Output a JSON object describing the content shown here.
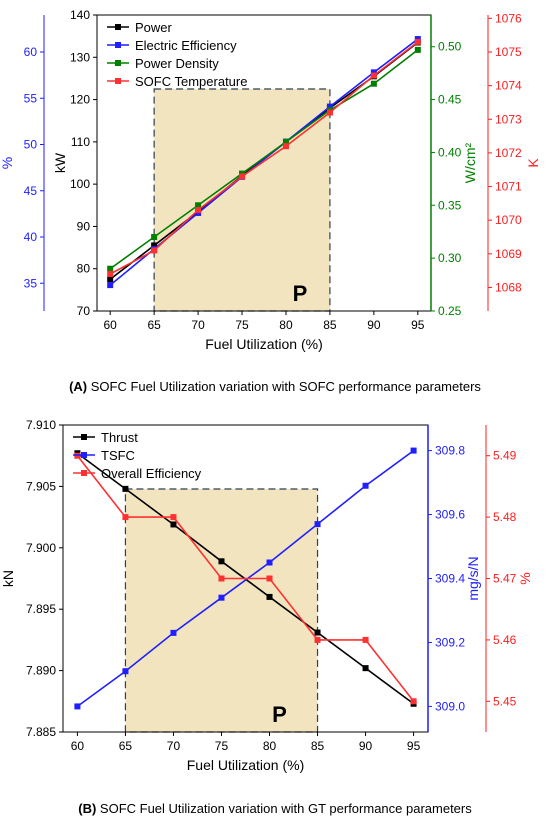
{
  "panels": [
    {
      "id": "A",
      "caption_label": "(A)",
      "caption_text": "SOFC Fuel Utilization variation with SOFC performance parameters",
      "chart_data": {
        "type": "line",
        "x": [
          60,
          65,
          70,
          75,
          80,
          85,
          90,
          95
        ],
        "xlabel": "Fuel Utilization (%)",
        "xlim": [
          58.5,
          96.5
        ],
        "xticks": [
          60,
          65,
          70,
          75,
          80,
          85,
          90,
          95
        ],
        "highlight": {
          "x0": 65,
          "x1": 85,
          "label": "P",
          "fill": "#f3e4c0"
        },
        "axes": [
          {
            "id": "kw",
            "side": "left",
            "offset": 0,
            "label": "kW",
            "color": "#000000",
            "lim": [
              70,
              140
            ],
            "ticks": [
              70,
              80,
              90,
              100,
              110,
              120,
              130,
              140
            ]
          },
          {
            "id": "pct",
            "side": "left",
            "offset": 1,
            "label": "%",
            "color": "#1f1fff",
            "lim": [
              32,
              64
            ],
            "ticks": [
              35,
              40,
              45,
              50,
              55,
              60
            ]
          },
          {
            "id": "wcm",
            "side": "right",
            "offset": 0,
            "label": "W/cm²",
            "color": "#008000",
            "lim": [
              0.25,
              0.53
            ],
            "ticks": [
              0.25,
              0.3,
              0.35,
              0.4,
              0.45,
              0.5
            ],
            "decimals": 2
          },
          {
            "id": "k",
            "side": "right",
            "offset": 1,
            "label": "K",
            "color": "#ff2020",
            "lim": [
              1067.3,
              1076.1
            ],
            "ticks": [
              1068,
              1069,
              1070,
              1071,
              1072,
              1073,
              1074,
              1075,
              1076
            ]
          }
        ],
        "series": [
          {
            "name": "Power",
            "axis": "kw",
            "color": "#000000",
            "values": [
              77.5,
              85.5,
              93.5,
              102,
              110,
              118,
              125.5,
              133.5
            ]
          },
          {
            "name": "Electric Efficiency",
            "axis": "pct",
            "color": "#1f1fff",
            "values": [
              34.8,
              38.7,
              42.6,
              46.5,
              50.3,
              54.1,
              57.8,
              61.4
            ]
          },
          {
            "name": "Power Density",
            "axis": "wcm",
            "color": "#008000",
            "values": [
              0.29,
              0.32,
              0.35,
              0.38,
              0.41,
              0.44,
              0.465,
              0.497
            ]
          },
          {
            "name": "SOFC Temperature",
            "axis": "k",
            "color": "#ff3030",
            "values": [
              1068.4,
              1069.1,
              1070.3,
              1071.3,
              1072.2,
              1073.2,
              1074.3,
              1075.3
            ]
          }
        ],
        "legend_position": "top-left"
      }
    },
    {
      "id": "B",
      "caption_label": "(B)",
      "caption_text": "SOFC Fuel Utilization variation with GT performance parameters",
      "chart_data": {
        "type": "line",
        "x": [
          60,
          65,
          70,
          75,
          80,
          85,
          90,
          95
        ],
        "xlabel": "Fuel Utilization (%)",
        "xlim": [
          58.5,
          96.5
        ],
        "xticks": [
          60,
          65,
          70,
          75,
          80,
          85,
          90,
          95
        ],
        "highlight": {
          "x0": 65,
          "x1": 85,
          "label": "P",
          "fill": "#f3e4c0"
        },
        "axes": [
          {
            "id": "kn",
            "side": "left",
            "offset": 0,
            "label": "kN",
            "color": "#000000",
            "lim": [
              7.885,
              7.91
            ],
            "ticks": [
              7.885,
              7.89,
              7.895,
              7.9,
              7.905,
              7.91
            ],
            "decimals": 3
          },
          {
            "id": "tsfc",
            "side": "right",
            "offset": 0,
            "label": "mg/s/N",
            "color": "#1f1fff",
            "lim": [
              308.92,
              309.88
            ],
            "ticks": [
              309.0,
              309.2,
              309.4,
              309.6,
              309.8
            ],
            "decimals": 1
          },
          {
            "id": "eff",
            "side": "right",
            "offset": 1,
            "label": "%",
            "color": "#ff2020",
            "lim": [
              5.445,
              5.495
            ],
            "ticks": [
              5.45,
              5.46,
              5.47,
              5.48,
              5.49
            ],
            "decimals": 2
          }
        ],
        "series": [
          {
            "name": "Thrust",
            "axis": "kn",
            "color": "#000000",
            "values": [
              7.9077,
              7.9048,
              7.9019,
              7.8989,
              7.896,
              7.8931,
              7.8902,
              7.8873
            ]
          },
          {
            "name": "TSFC",
            "axis": "tsfc",
            "color": "#1f1fff",
            "values": [
              309.0,
              309.11,
              309.23,
              309.34,
              309.45,
              309.57,
              309.69,
              309.8
            ]
          },
          {
            "name": "Overall Efficiency",
            "axis": "eff",
            "color": "#ff3030",
            "values": [
              5.49,
              5.48,
              5.48,
              5.47,
              5.47,
              5.46,
              5.46,
              5.45
            ],
            "step": true
          }
        ],
        "legend_position": "top-left"
      }
    }
  ]
}
